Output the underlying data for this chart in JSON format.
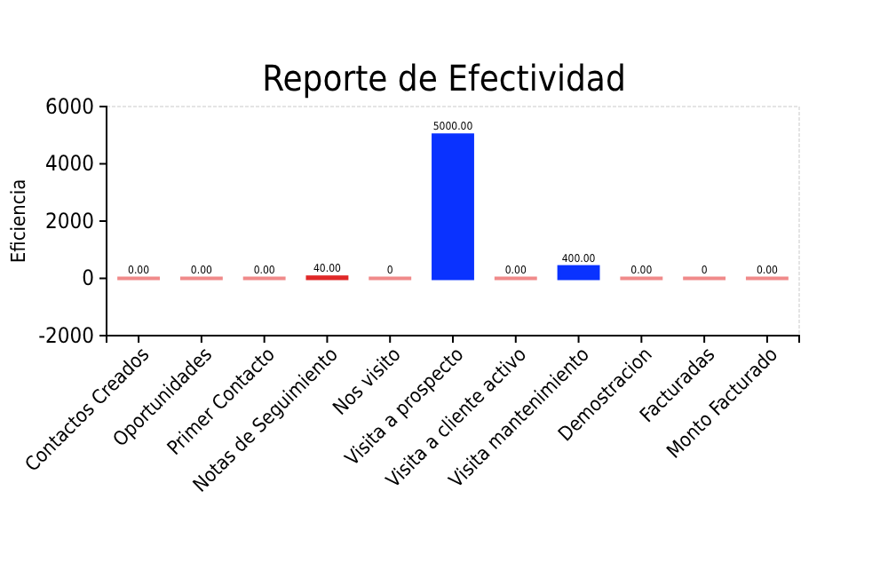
{
  "chart_data": {
    "type": "bar",
    "title": "Reporte de Efectividad",
    "ylabel": "Eficiencia",
    "categories": [
      "Contactos Creados",
      "Oportunidades",
      "Primer Contacto",
      "Notas de Seguimiento",
      "Nos visito",
      "Visita a prospecto",
      "Visita a cliente activo",
      "Visita mantenimiento",
      "Demostracion",
      "Facturadas",
      "Monto Facturado"
    ],
    "values": [
      0,
      0,
      0,
      40,
      0,
      5000,
      0,
      400,
      0,
      0,
      0
    ],
    "value_labels": [
      "0.00",
      "0.00",
      "0.00",
      "40.00",
      "0",
      "5000.00",
      "0.00",
      "400.00",
      "0.00",
      "0",
      "0.00"
    ],
    "colors": [
      "#f08a8a",
      "#f08a8a",
      "#f08a8a",
      "#e02828",
      "#f08a8a",
      "#0a32ff",
      "#f08a8a",
      "#0a32ff",
      "#f08a8a",
      "#f08a8a",
      "#f08a8a"
    ],
    "ylim": [
      -2000,
      6000
    ],
    "yticks": [
      -2000,
      0,
      2000,
      4000,
      6000
    ],
    "grid": false
  }
}
